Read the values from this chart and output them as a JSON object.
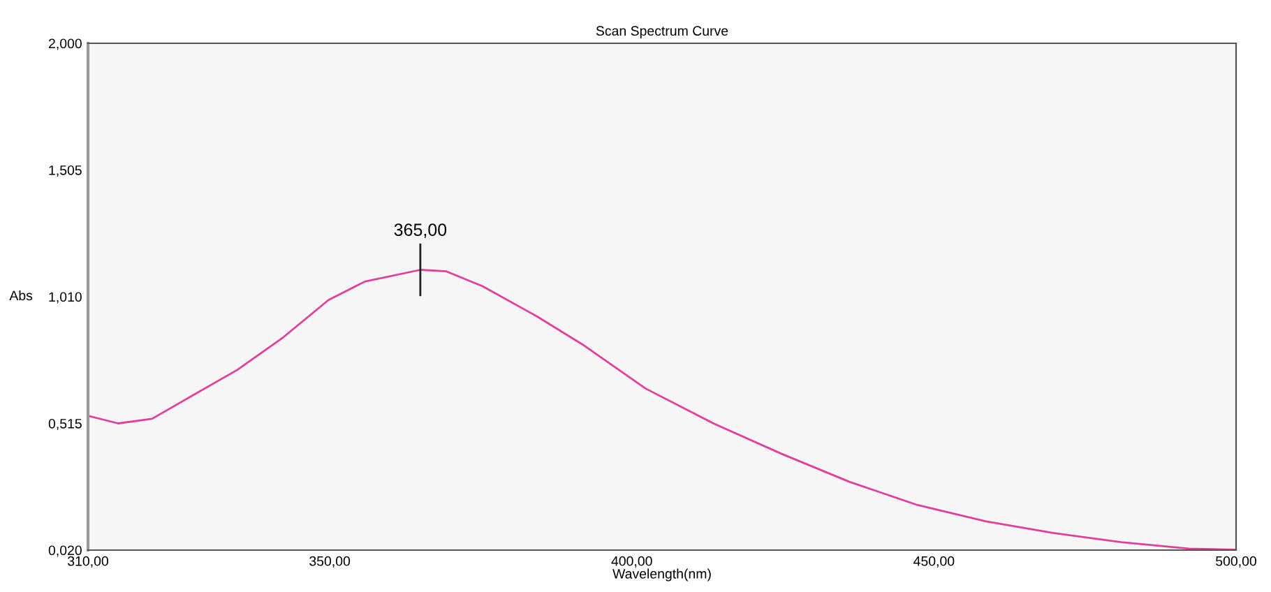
{
  "chart_data": {
    "type": "line",
    "title": "Scan Spectrum Curve",
    "xlabel": "Wavelength(nm)",
    "ylabel": "Abs",
    "x": [
      310,
      315,
      320.6,
      327.3,
      334.7,
      342.3,
      349.8,
      355.8,
      365,
      369.3,
      375.3,
      384.3,
      391.8,
      402.3,
      413.5,
      424.8,
      436.0,
      447.3,
      458.5,
      469.7,
      481.0,
      492.2,
      500
    ],
    "series": [
      {
        "color": "#e0409a",
        "values": [
          0.545,
          0.515,
          0.533,
          0.624,
          0.724,
          0.851,
          0.997,
          1.069,
          1.115,
          1.109,
          1.051,
          0.933,
          0.824,
          0.651,
          0.515,
          0.396,
          0.287,
          0.196,
          0.133,
          0.087,
          0.051,
          0.026,
          0.022
        ]
      }
    ],
    "xlim": [
      310,
      500
    ],
    "ylim": [
      0.02,
      2.0
    ],
    "xticks": [
      {
        "value": 310,
        "label": "310,00"
      },
      {
        "value": 350,
        "label": "350,00"
      },
      {
        "value": 400,
        "label": "400,00"
      },
      {
        "value": 450,
        "label": "450,00"
      },
      {
        "value": 500,
        "label": "500,00"
      }
    ],
    "yticks": [
      {
        "value": 0.02,
        "label": "0,020"
      },
      {
        "value": 0.515,
        "label": "0,515"
      },
      {
        "value": 1.01,
        "label": "1,010"
      },
      {
        "value": 1.505,
        "label": "1,505"
      },
      {
        "value": 2.0,
        "label": "2,000"
      }
    ],
    "annotations": [
      {
        "text": "365,00",
        "x": 365,
        "y": 1.115
      }
    ],
    "grid": false,
    "legend": false,
    "marker": "none",
    "line_style": "solid"
  }
}
